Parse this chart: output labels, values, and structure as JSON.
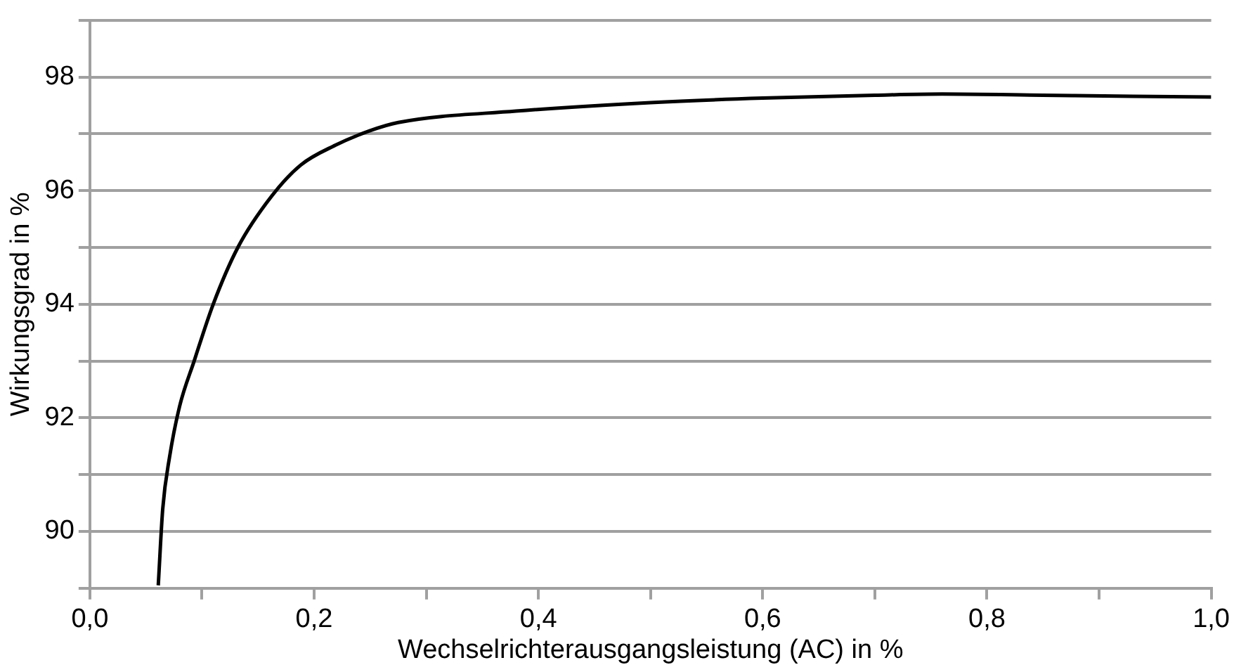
{
  "chart_data": {
    "type": "line",
    "xlabel": "Wechselrichterausgangsleistung (AC) in %",
    "ylabel": "Wirkungsgrad in %",
    "x": [
      0.061,
      0.065,
      0.071,
      0.08,
      0.093,
      0.11,
      0.132,
      0.162,
      0.188,
      0.219,
      0.249,
      0.275,
      0.38,
      0.5,
      0.6,
      0.7,
      0.76,
      0.85,
      0.93,
      1.0
    ],
    "series": [
      {
        "color": "#000000",
        "values": [
          89.05,
          90.4,
          91.3,
          92.2,
          93.0,
          94.0,
          95.0,
          95.9,
          96.45,
          96.8,
          97.05,
          97.2,
          97.4,
          97.55,
          97.63,
          97.68,
          97.7,
          97.68,
          97.66,
          97.65
        ]
      }
    ],
    "xlim": [
      0,
      1
    ],
    "ylim": [
      89,
      99
    ],
    "xticks": [
      {
        "value": 0,
        "label": "0,0"
      },
      {
        "value": 0.1,
        "label": null
      },
      {
        "value": 0.2,
        "label": "0,2"
      },
      {
        "value": 0.3,
        "label": null
      },
      {
        "value": 0.4,
        "label": "0,4"
      },
      {
        "value": 0.5,
        "label": null
      },
      {
        "value": 0.6,
        "label": "0,6"
      },
      {
        "value": 0.7,
        "label": null
      },
      {
        "value": 0.8,
        "label": "0,8"
      },
      {
        "value": 0.9,
        "label": null
      },
      {
        "value": 1,
        "label": "1,0"
      }
    ],
    "yticks": [
      {
        "value": 89,
        "label": null
      },
      90,
      {
        "value": 91,
        "label": null
      },
      92,
      {
        "value": 93,
        "label": null
      },
      94,
      {
        "value": 95,
        "label": null
      },
      96,
      {
        "value": 97,
        "label": null
      },
      98,
      {
        "value": 99,
        "label": null
      }
    ],
    "grid": "y",
    "legend": false,
    "marker": "none",
    "line_style": "solid"
  }
}
